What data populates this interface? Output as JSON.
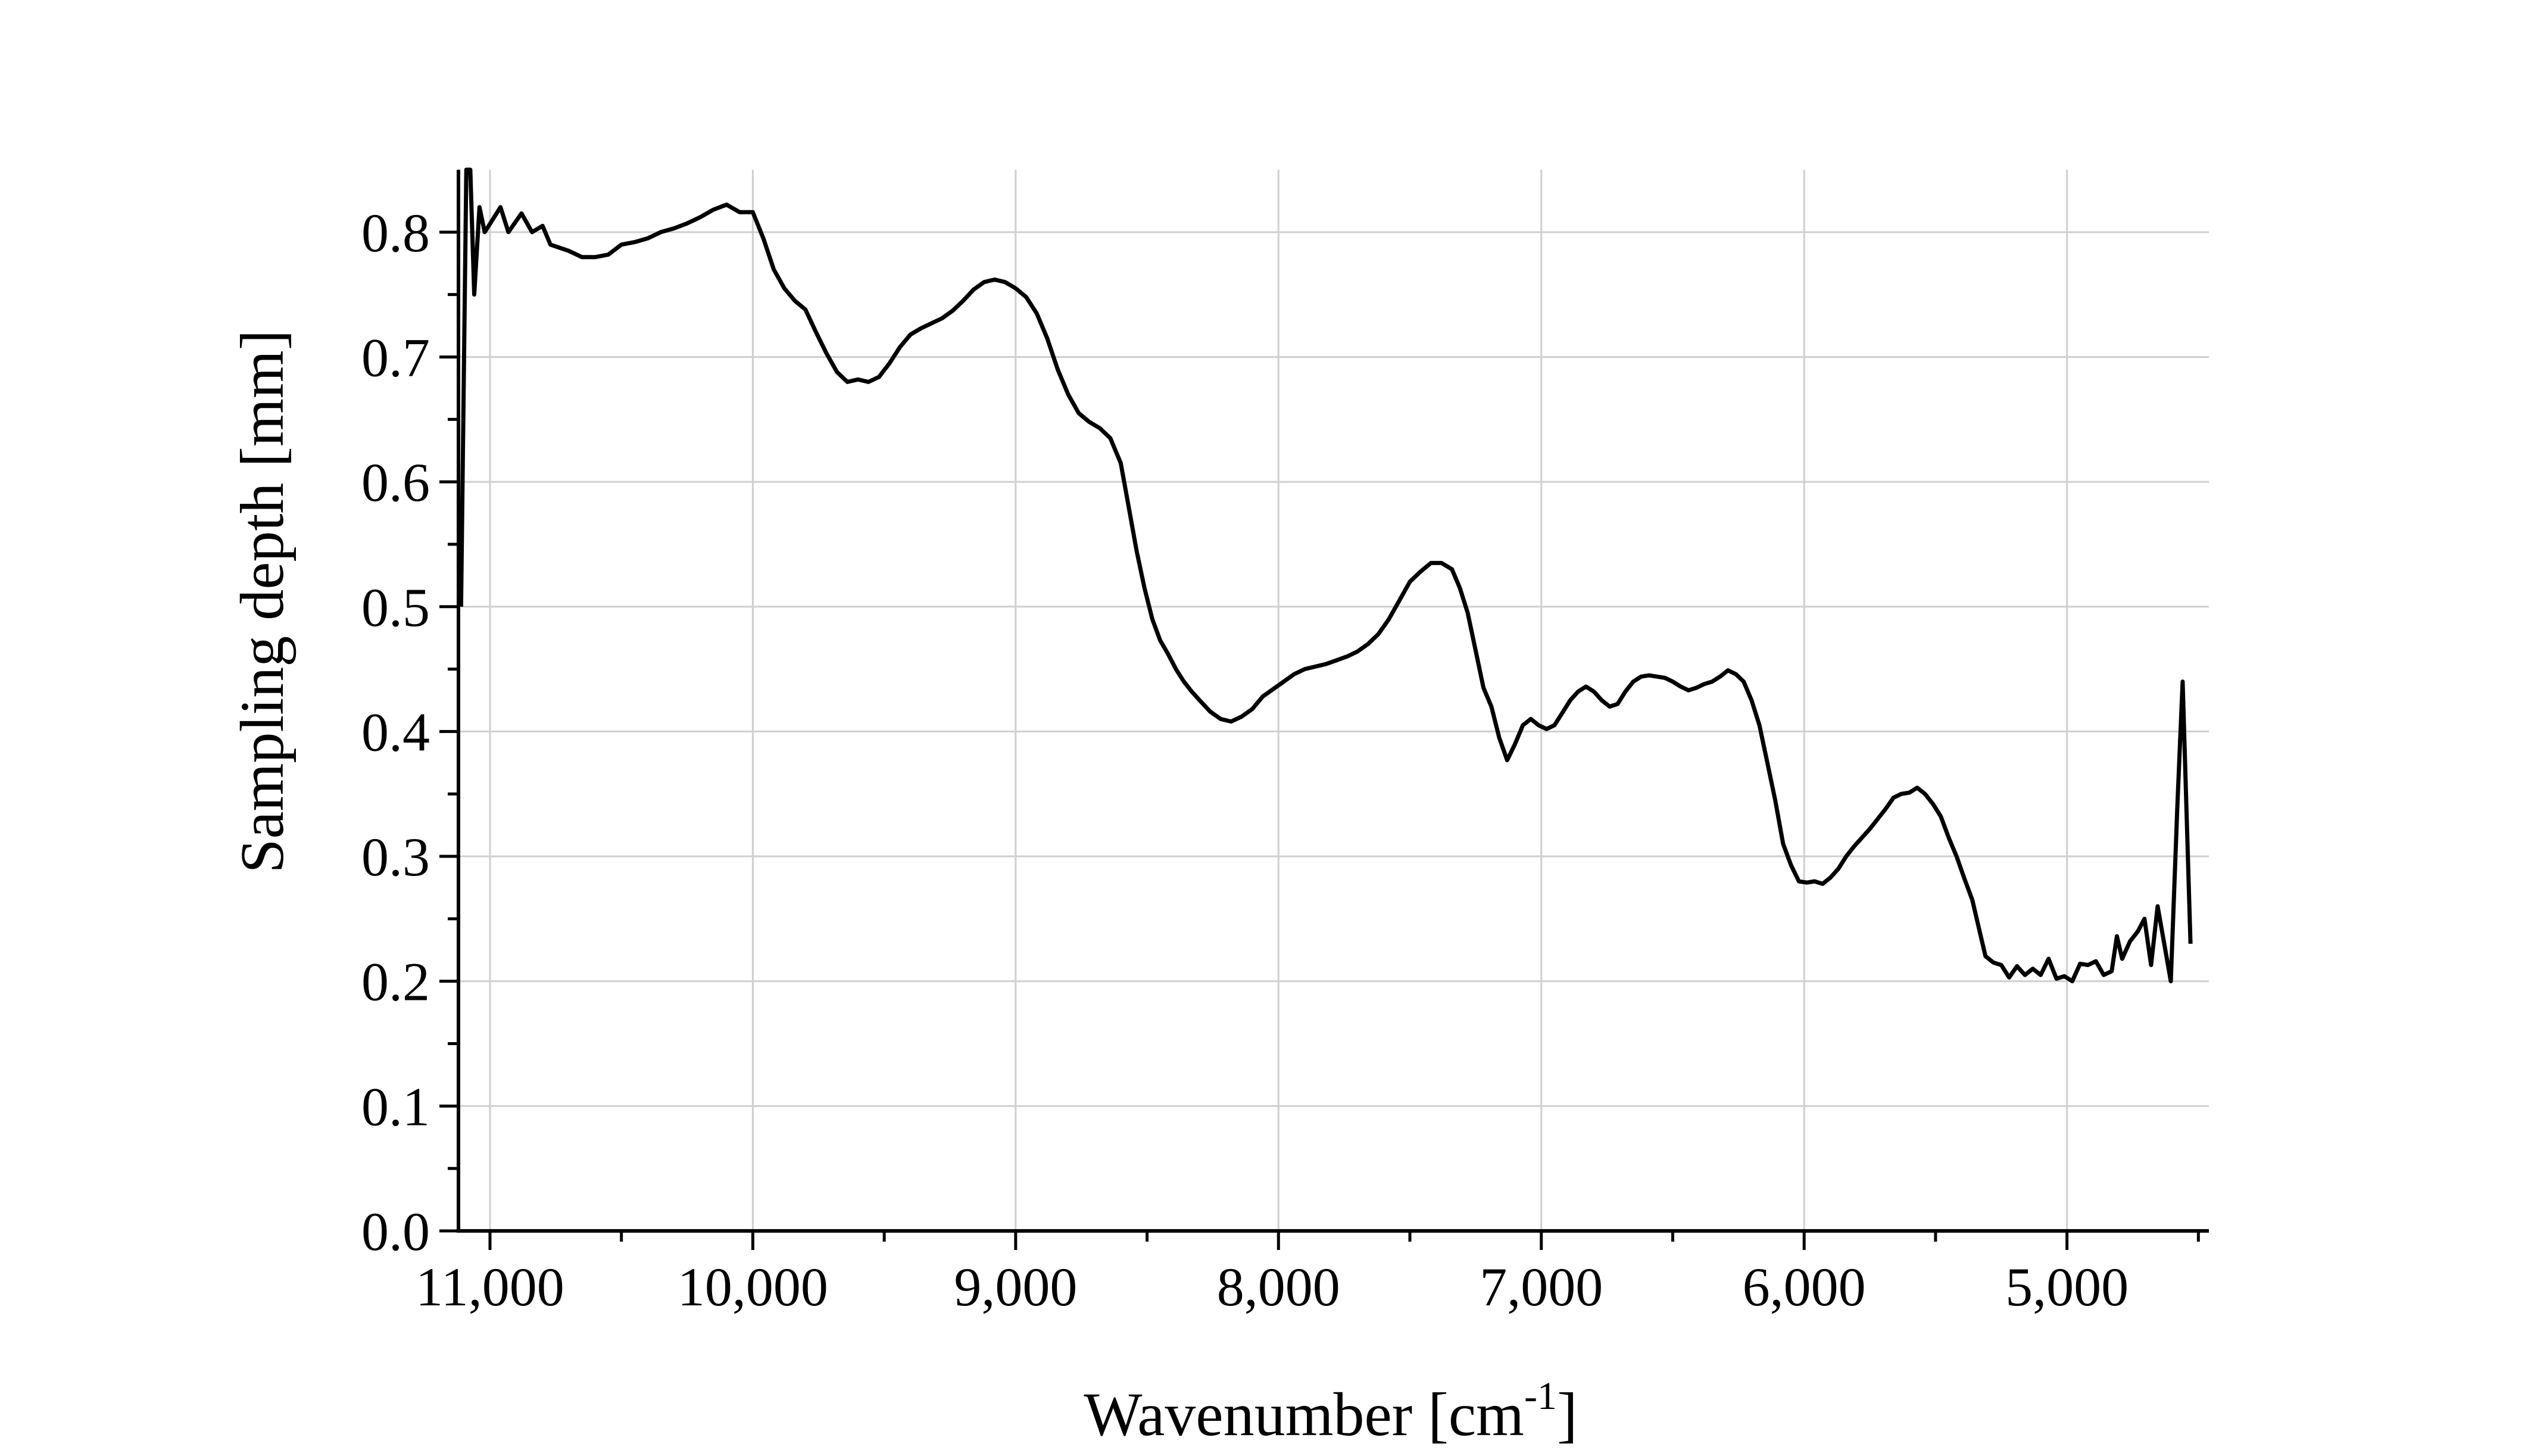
{
  "chart_data": {
    "type": "line",
    "xlabel": "Wavenumber [cm",
    "xlabel_sup": "-1",
    "xlabel_close": "]",
    "ylabel": "Sampling depth [mm]",
    "xlim": [
      11120,
      4460
    ],
    "ylim": [
      0.0,
      0.85
    ],
    "x_reversed": true,
    "grid": true,
    "x_ticks": [
      11000,
      10000,
      9000,
      8000,
      7000,
      6000,
      5000
    ],
    "x_tick_labels": [
      "11,000",
      "10,000",
      "9,000",
      "8,000",
      "7,000",
      "6,000",
      "5,000"
    ],
    "y_ticks": [
      0.0,
      0.1,
      0.2,
      0.3,
      0.4,
      0.5,
      0.6,
      0.7,
      0.8
    ],
    "y_tick_labels": [
      "0.0",
      "0.1",
      "0.2",
      "0.3",
      "0.4",
      "0.5",
      "0.6",
      "0.7",
      "0.8"
    ],
    "series": [
      {
        "color": "#000000",
        "points": [
          [
            11110,
            0.5
          ],
          [
            11090,
            0.85
          ],
          [
            11075,
            0.85
          ],
          [
            11060,
            0.75
          ],
          [
            11040,
            0.82
          ],
          [
            11020,
            0.8
          ],
          [
            10990,
            0.81
          ],
          [
            10960,
            0.82
          ],
          [
            10930,
            0.8
          ],
          [
            10880,
            0.815
          ],
          [
            10840,
            0.8
          ],
          [
            10800,
            0.805
          ],
          [
            10770,
            0.79
          ],
          [
            10700,
            0.785
          ],
          [
            10650,
            0.78
          ],
          [
            10600,
            0.78
          ],
          [
            10550,
            0.782
          ],
          [
            10500,
            0.79
          ],
          [
            10450,
            0.792
          ],
          [
            10400,
            0.795
          ],
          [
            10350,
            0.8
          ],
          [
            10300,
            0.803
          ],
          [
            10250,
            0.807
          ],
          [
            10200,
            0.812
          ],
          [
            10150,
            0.818
          ],
          [
            10100,
            0.822
          ],
          [
            10050,
            0.816
          ],
          [
            10000,
            0.816
          ],
          [
            9960,
            0.795
          ],
          [
            9920,
            0.77
          ],
          [
            9880,
            0.755
          ],
          [
            9840,
            0.745
          ],
          [
            9800,
            0.738
          ],
          [
            9760,
            0.72
          ],
          [
            9720,
            0.703
          ],
          [
            9680,
            0.688
          ],
          [
            9640,
            0.68
          ],
          [
            9600,
            0.682
          ],
          [
            9560,
            0.68
          ],
          [
            9520,
            0.684
          ],
          [
            9480,
            0.695
          ],
          [
            9440,
            0.708
          ],
          [
            9400,
            0.718
          ],
          [
            9360,
            0.723
          ],
          [
            9320,
            0.727
          ],
          [
            9280,
            0.731
          ],
          [
            9240,
            0.737
          ],
          [
            9200,
            0.745
          ],
          [
            9160,
            0.754
          ],
          [
            9120,
            0.76
          ],
          [
            9080,
            0.762
          ],
          [
            9040,
            0.76
          ],
          [
            9000,
            0.755
          ],
          [
            8960,
            0.748
          ],
          [
            8920,
            0.735
          ],
          [
            8880,
            0.715
          ],
          [
            8840,
            0.69
          ],
          [
            8800,
            0.67
          ],
          [
            8760,
            0.655
          ],
          [
            8720,
            0.648
          ],
          [
            8680,
            0.643
          ],
          [
            8640,
            0.635
          ],
          [
            8600,
            0.615
          ],
          [
            8570,
            0.58
          ],
          [
            8540,
            0.545
          ],
          [
            8510,
            0.515
          ],
          [
            8480,
            0.49
          ],
          [
            8450,
            0.473
          ],
          [
            8420,
            0.462
          ],
          [
            8390,
            0.45
          ],
          [
            8360,
            0.44
          ],
          [
            8330,
            0.432
          ],
          [
            8300,
            0.425
          ],
          [
            8260,
            0.416
          ],
          [
            8220,
            0.41
          ],
          [
            8180,
            0.408
          ],
          [
            8140,
            0.412
          ],
          [
            8100,
            0.418
          ],
          [
            8060,
            0.428
          ],
          [
            8020,
            0.434
          ],
          [
            7980,
            0.44
          ],
          [
            7940,
            0.446
          ],
          [
            7900,
            0.45
          ],
          [
            7860,
            0.452
          ],
          [
            7820,
            0.454
          ],
          [
            7780,
            0.457
          ],
          [
            7740,
            0.46
          ],
          [
            7700,
            0.464
          ],
          [
            7660,
            0.47
          ],
          [
            7620,
            0.478
          ],
          [
            7580,
            0.49
          ],
          [
            7540,
            0.505
          ],
          [
            7500,
            0.52
          ],
          [
            7460,
            0.528
          ],
          [
            7420,
            0.535
          ],
          [
            7380,
            0.535
          ],
          [
            7340,
            0.53
          ],
          [
            7310,
            0.515
          ],
          [
            7280,
            0.495
          ],
          [
            7250,
            0.465
          ],
          [
            7220,
            0.435
          ],
          [
            7190,
            0.42
          ],
          [
            7160,
            0.395
          ],
          [
            7130,
            0.377
          ],
          [
            7100,
            0.39
          ],
          [
            7070,
            0.405
          ],
          [
            7040,
            0.41
          ],
          [
            7010,
            0.405
          ],
          [
            6980,
            0.402
          ],
          [
            6950,
            0.405
          ],
          [
            6920,
            0.415
          ],
          [
            6890,
            0.425
          ],
          [
            6860,
            0.432
          ],
          [
            6830,
            0.436
          ],
          [
            6800,
            0.432
          ],
          [
            6770,
            0.425
          ],
          [
            6740,
            0.42
          ],
          [
            6710,
            0.422
          ],
          [
            6680,
            0.432
          ],
          [
            6650,
            0.44
          ],
          [
            6620,
            0.444
          ],
          [
            6590,
            0.445
          ],
          [
            6560,
            0.444
          ],
          [
            6530,
            0.443
          ],
          [
            6500,
            0.44
          ],
          [
            6470,
            0.436
          ],
          [
            6440,
            0.433
          ],
          [
            6410,
            0.435
          ],
          [
            6380,
            0.438
          ],
          [
            6350,
            0.44
          ],
          [
            6320,
            0.444
          ],
          [
            6290,
            0.449
          ],
          [
            6260,
            0.446
          ],
          [
            6230,
            0.44
          ],
          [
            6200,
            0.425
          ],
          [
            6170,
            0.405
          ],
          [
            6140,
            0.375
          ],
          [
            6110,
            0.345
          ],
          [
            6080,
            0.31
          ],
          [
            6050,
            0.293
          ],
          [
            6020,
            0.28
          ],
          [
            5990,
            0.279
          ],
          [
            5960,
            0.28
          ],
          [
            5930,
            0.278
          ],
          [
            5900,
            0.283
          ],
          [
            5870,
            0.29
          ],
          [
            5840,
            0.3
          ],
          [
            5810,
            0.308
          ],
          [
            5780,
            0.315
          ],
          [
            5750,
            0.322
          ],
          [
            5720,
            0.33
          ],
          [
            5690,
            0.338
          ],
          [
            5660,
            0.347
          ],
          [
            5630,
            0.35
          ],
          [
            5600,
            0.351
          ],
          [
            5570,
            0.355
          ],
          [
            5540,
            0.35
          ],
          [
            5510,
            0.342
          ],
          [
            5480,
            0.332
          ],
          [
            5450,
            0.315
          ],
          [
            5420,
            0.3
          ],
          [
            5390,
            0.282
          ],
          [
            5360,
            0.265
          ],
          [
            5330,
            0.238
          ],
          [
            5310,
            0.22
          ],
          [
            5280,
            0.215
          ],
          [
            5250,
            0.213
          ],
          [
            5220,
            0.203
          ],
          [
            5190,
            0.212
          ],
          [
            5160,
            0.205
          ],
          [
            5130,
            0.21
          ],
          [
            5100,
            0.205
          ],
          [
            5070,
            0.218
          ],
          [
            5040,
            0.202
          ],
          [
            5010,
            0.204
          ],
          [
            4980,
            0.2
          ],
          [
            4950,
            0.214
          ],
          [
            4920,
            0.213
          ],
          [
            4890,
            0.216
          ],
          [
            4860,
            0.205
          ],
          [
            4830,
            0.208
          ],
          [
            4810,
            0.236
          ],
          [
            4790,
            0.218
          ],
          [
            4760,
            0.232
          ],
          [
            4730,
            0.24
          ],
          [
            4705,
            0.25
          ],
          [
            4680,
            0.213
          ],
          [
            4655,
            0.26
          ],
          [
            4630,
            0.23
          ],
          [
            4605,
            0.2
          ],
          [
            4580,
            0.34
          ],
          [
            4560,
            0.44
          ],
          [
            4540,
            0.3
          ],
          [
            4530,
            0.23
          ]
        ]
      }
    ]
  }
}
